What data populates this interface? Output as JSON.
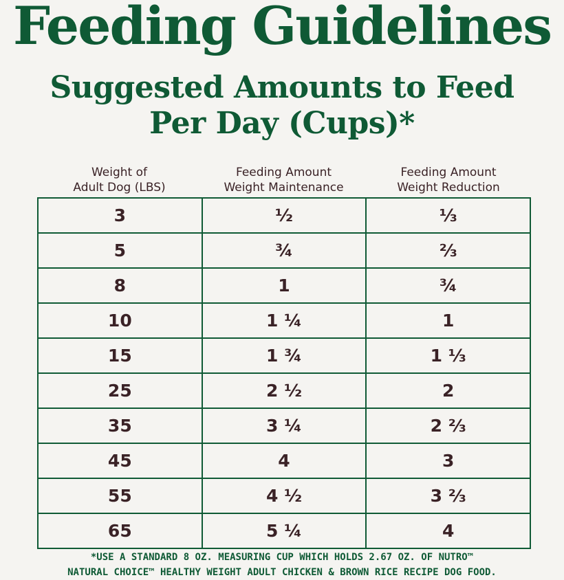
{
  "title": "Feeding Guidelines",
  "subtitle": {
    "line1": "Suggested Amounts to Feed",
    "line2": "Per Day (Cups)*"
  },
  "columns": [
    {
      "line1": "Weight of",
      "line2": "Adult Dog (LBS)"
    },
    {
      "line1": "Feeding Amount",
      "line2": "Weight Maintenance"
    },
    {
      "line1": "Feeding Amount",
      "line2": "Weight Reduction"
    }
  ],
  "rows": [
    [
      "3",
      "½",
      "⅓"
    ],
    [
      "5",
      "¾",
      "⅔"
    ],
    [
      "8",
      "1",
      "¾"
    ],
    [
      "10",
      "1 ¼",
      "1"
    ],
    [
      "15",
      "1 ¾",
      "1 ⅓"
    ],
    [
      "25",
      "2 ½",
      "2"
    ],
    [
      "35",
      "3 ¼",
      "2 ⅔"
    ],
    [
      "45",
      "4",
      "3"
    ],
    [
      "55",
      "4 ½",
      "3 ⅔"
    ],
    [
      "65",
      "5 ¼",
      "4"
    ]
  ],
  "footnote": {
    "line1": "*USE A STANDARD 8 OZ. MEASURING CUP WHICH HOLDS 2.67 OZ. OF NUTRO™",
    "line2": "NATURAL CHOICE™ HEALTHY WEIGHT ADULT CHICKEN & BROWN RICE RECIPE DOG FOOD."
  },
  "colors": {
    "brand_green": "#0f5a35",
    "text_dark": "#3a2226",
    "background": "#f5f4f1"
  }
}
